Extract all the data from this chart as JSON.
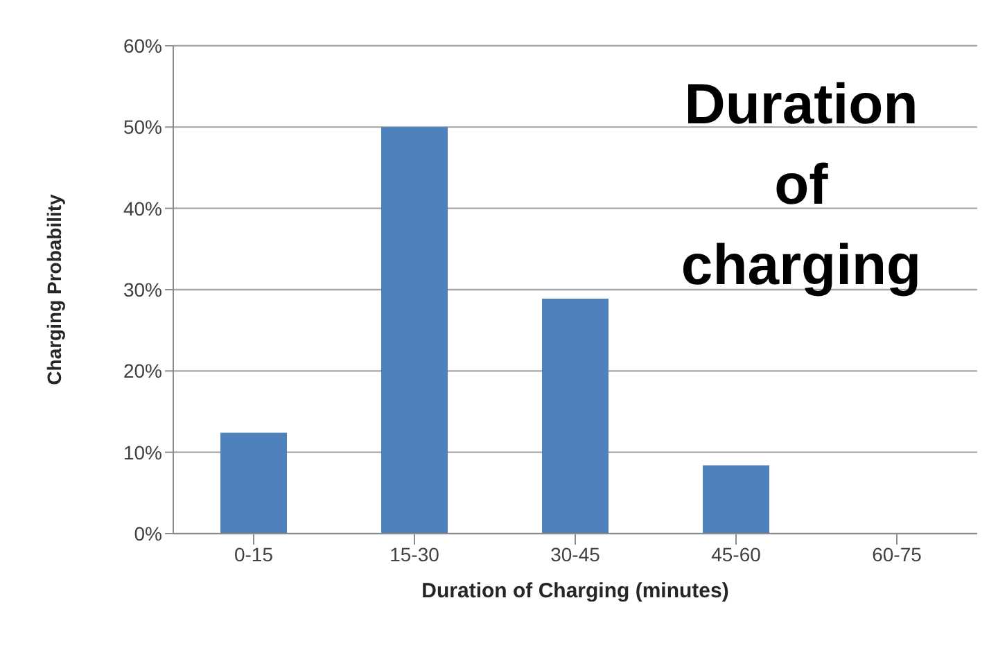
{
  "chart_data": {
    "type": "bar",
    "title": "Duration of charging",
    "xlabel": "Duration of Charging (minutes)",
    "ylabel": "Charging Probability",
    "categories": [
      "0-15",
      "15-30",
      "30-45",
      "45-60",
      "60-75"
    ],
    "values": [
      12.4,
      50,
      28.9,
      8.4,
      0
    ],
    "color": "#4f81bd",
    "ylim": [
      0,
      60
    ],
    "yticks": [
      {
        "value": 0,
        "label": "0%"
      },
      {
        "value": 10,
        "label": "10%"
      },
      {
        "value": 20,
        "label": "20%"
      },
      {
        "value": 30,
        "label": "30%"
      },
      {
        "value": 40,
        "label": "40%"
      },
      {
        "value": 50,
        "label": "50%"
      },
      {
        "value": 60,
        "label": "60%"
      }
    ],
    "grid": "y",
    "legend": false
  }
}
